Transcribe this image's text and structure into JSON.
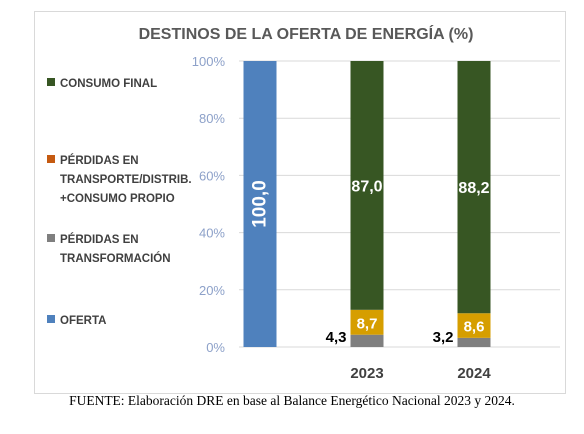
{
  "chart_data": {
    "type": "bar",
    "stacked": true,
    "title": "DESTINOS DE LA OFERTA DE ENERGÍA (%)",
    "categories": [
      "",
      "2023",
      "2024"
    ],
    "ylim": [
      0,
      100
    ],
    "y_ticks": [
      "0%",
      "20%",
      "40%",
      "60%",
      "80%",
      "100%"
    ],
    "grid": true,
    "legend_position": "left",
    "series": [
      {
        "name": "OFERTA",
        "color": "#4f81bd",
        "values": [
          100.0,
          0,
          0
        ],
        "labels": [
          "100,0",
          "",
          ""
        ]
      },
      {
        "name": "PÉRDIDAS EN TRANSFORMACIÓN",
        "color": "#7f7f7f",
        "values": [
          0,
          4.3,
          3.2
        ],
        "labels": [
          "",
          "4,3",
          "3,2"
        ]
      },
      {
        "name": "PÉRDIDAS EN TRANSPORTE/DISTRIB. +CONSUMO PROPIO",
        "color": "#d69e00",
        "values": [
          0,
          8.7,
          8.6
        ],
        "labels": [
          "",
          "8,7",
          "8,6"
        ]
      },
      {
        "name": "CONSUMO FINAL",
        "color": "#375623",
        "values": [
          0,
          87.0,
          88.2
        ],
        "labels": [
          "",
          "87,0",
          "88,2"
        ]
      }
    ]
  },
  "legend": [
    {
      "lines": [
        "CONSUMO FINAL"
      ],
      "color": "#375623"
    },
    {
      "lines": [
        "PÉRDIDAS EN",
        "TRANSPORTE/DISTRIB.",
        "+CONSUMO PROPIO"
      ],
      "color": "#c55a11"
    },
    {
      "lines": [
        "PÉRDIDAS EN",
        "TRANSFORMACIÓN"
      ],
      "color": "#7f7f7f"
    },
    {
      "lines": [
        "OFERTA"
      ],
      "color": "#4f81bd"
    }
  ],
  "source": "FUENTE: Elaboración DRE en base al Balance Energético Nacional 2023 y 2024."
}
